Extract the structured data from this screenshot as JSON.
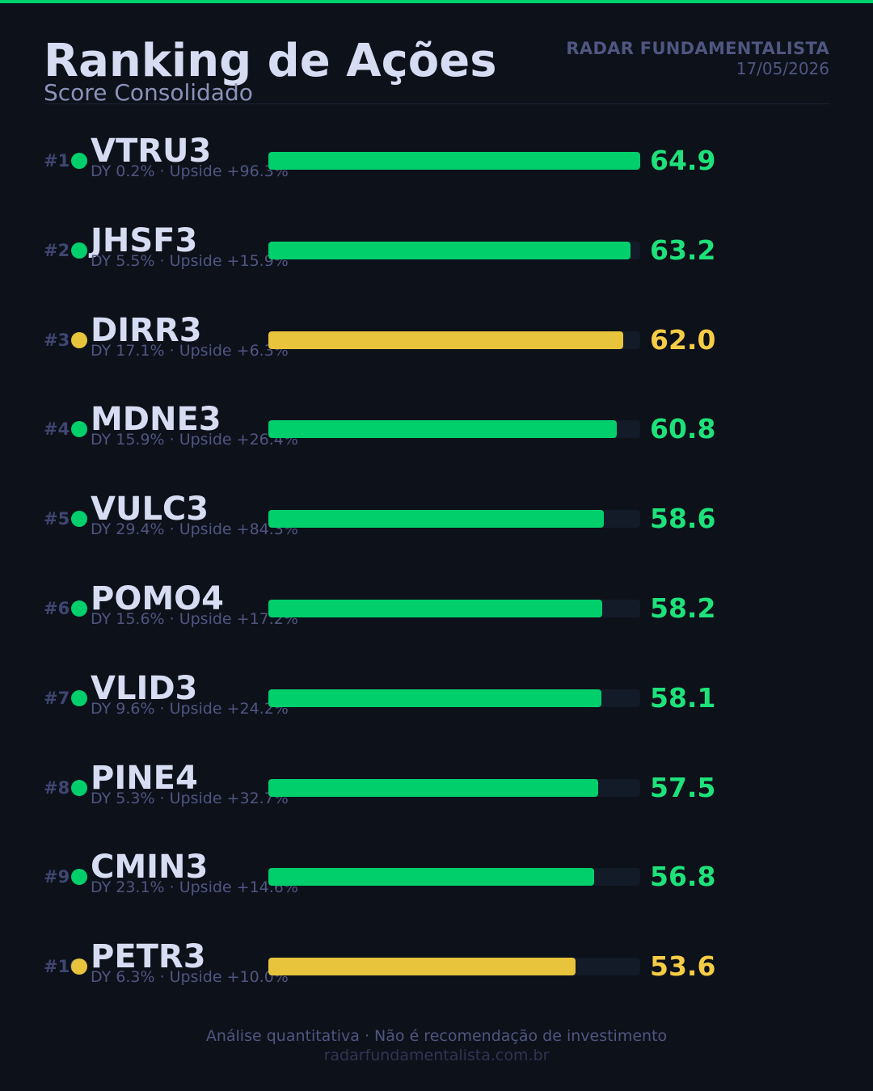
{
  "header": {
    "title": "Ranking de Ações",
    "subtitle": "Score Consolidado",
    "brand": "RADAR FUNDAMENTALISTA",
    "date": "17/05/2026"
  },
  "colors": {
    "accent": "#00d26a",
    "green": "#00cf6c",
    "yellow": "#e8c33c",
    "score_green": "#1de27a",
    "score_yellow": "#f5cc45"
  },
  "chart_data": {
    "type": "bar",
    "orientation": "horizontal",
    "title": "Ranking de Ações",
    "subtitle": "Score Consolidado",
    "xlim": [
      0,
      64.9
    ],
    "categories": [
      "VTRU3",
      "JHSF3",
      "DIRR3",
      "MDNE3",
      "VULC3",
      "POMO4",
      "VLID3",
      "PINE4",
      "CMIN3",
      "PETR3"
    ],
    "values": [
      64.9,
      63.2,
      62.0,
      60.8,
      58.6,
      58.2,
      58.1,
      57.5,
      56.8,
      53.6
    ],
    "rows": [
      {
        "rank": "#1",
        "ticker": "VTRU3",
        "meta": "DY 0.2%  ·  Upside +96.3%",
        "score": 64.9,
        "score_label": "64.9",
        "color": "green"
      },
      {
        "rank": "#2",
        "ticker": "JHSF3",
        "meta": "DY 5.5%  ·  Upside +15.9%",
        "score": 63.2,
        "score_label": "63.2",
        "color": "green"
      },
      {
        "rank": "#3",
        "ticker": "DIRR3",
        "meta": "DY 17.1%  ·  Upside +6.3%",
        "score": 62.0,
        "score_label": "62.0",
        "color": "yellow"
      },
      {
        "rank": "#4",
        "ticker": "MDNE3",
        "meta": "DY 15.9%  ·  Upside +26.4%",
        "score": 60.8,
        "score_label": "60.8",
        "color": "green"
      },
      {
        "rank": "#5",
        "ticker": "VULC3",
        "meta": "DY 29.4%  ·  Upside +84.3%",
        "score": 58.6,
        "score_label": "58.6",
        "color": "green"
      },
      {
        "rank": "#6",
        "ticker": "POMO4",
        "meta": "DY 15.6%  ·  Upside +17.2%",
        "score": 58.2,
        "score_label": "58.2",
        "color": "green"
      },
      {
        "rank": "#7",
        "ticker": "VLID3",
        "meta": "DY 9.6%  ·  Upside +24.2%",
        "score": 58.1,
        "score_label": "58.1",
        "color": "green"
      },
      {
        "rank": "#8",
        "ticker": "PINE4",
        "meta": "DY 5.3%  ·  Upside +32.7%",
        "score": 57.5,
        "score_label": "57.5",
        "color": "green"
      },
      {
        "rank": "#9",
        "ticker": "CMIN3",
        "meta": "DY 23.1%  ·  Upside +14.6%",
        "score": 56.8,
        "score_label": "56.8",
        "color": "green"
      },
      {
        "rank": "#10",
        "ticker": "PETR3",
        "meta": "DY 6.3%  ·  Upside +10.0%",
        "score": 53.6,
        "score_label": "53.6",
        "color": "yellow"
      }
    ]
  },
  "footer": {
    "disclaimer": "Análise quantitativa  ·  Não é recomendação de investimento",
    "url": "radarfundamentalista.com.br"
  }
}
